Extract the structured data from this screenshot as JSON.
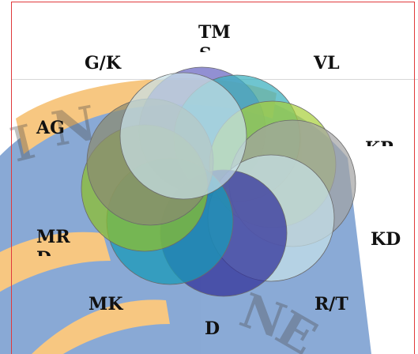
{
  "diagram": {
    "labels": {
      "tm": "TM",
      "tm_cut": "S",
      "vl": "VL",
      "gk": "G/K",
      "ag": "AG",
      "kp_cut": "KP",
      "kd": "KD",
      "mr": "MR",
      "mr_cut": "D",
      "mk": "MK",
      "rt": "R/T",
      "d": "D"
    },
    "petal_colors": {
      "tm": "#6d6bc4",
      "vl": "#3fb2c0",
      "kp": "#a7cf38",
      "kd": "#a2a2a2",
      "rt": "#c8e3ea",
      "d": "#33339a",
      "mk": "#1a9ab7",
      "mr": "#8ebf2a",
      "ag": "#8a8a70",
      "gk": "#c7e1e8"
    },
    "background_colors": {
      "orange_band": "#f29a1c",
      "blue_disc": "#2a64b4",
      "frame": "#e0393b"
    }
  }
}
